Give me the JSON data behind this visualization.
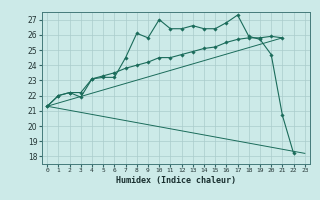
{
  "xlabel": "Humidex (Indice chaleur)",
  "bg_color": "#cceae8",
  "grid_color": "#aacccc",
  "line_color": "#1a6b5a",
  "xlim": [
    -0.5,
    23.5
  ],
  "ylim": [
    17.5,
    27.5
  ],
  "yticks": [
    18,
    19,
    20,
    21,
    22,
    23,
    24,
    25,
    26,
    27
  ],
  "xticks": [
    0,
    1,
    2,
    3,
    4,
    5,
    6,
    7,
    8,
    9,
    10,
    11,
    12,
    13,
    14,
    15,
    16,
    17,
    18,
    19,
    20,
    21,
    22,
    23
  ],
  "line1_x": [
    0,
    1,
    2,
    3,
    4,
    5,
    6,
    7,
    8,
    9,
    10,
    11,
    12,
    13,
    14,
    15,
    16,
    17,
    18,
    19,
    20,
    21,
    22
  ],
  "line1_y": [
    21.3,
    22.0,
    22.2,
    21.9,
    23.1,
    23.2,
    23.2,
    24.5,
    26.1,
    25.8,
    27.0,
    26.4,
    26.4,
    26.6,
    26.4,
    26.4,
    26.8,
    27.3,
    25.9,
    25.7,
    24.7,
    20.7,
    18.2
  ],
  "line2_x": [
    0,
    1,
    2,
    3,
    4,
    5,
    6,
    7,
    8,
    9,
    10,
    11,
    12,
    13,
    14,
    15,
    16,
    17,
    18,
    19,
    20,
    21
  ],
  "line2_y": [
    21.3,
    22.0,
    22.2,
    22.2,
    23.1,
    23.3,
    23.5,
    23.8,
    24.0,
    24.2,
    24.5,
    24.5,
    24.7,
    24.9,
    25.1,
    25.2,
    25.5,
    25.7,
    25.8,
    25.8,
    25.9,
    25.8
  ],
  "line3_x": [
    0,
    23
  ],
  "line3_y": [
    21.3,
    18.2
  ],
  "line4_x": [
    0,
    21
  ],
  "line4_y": [
    21.3,
    25.8
  ]
}
